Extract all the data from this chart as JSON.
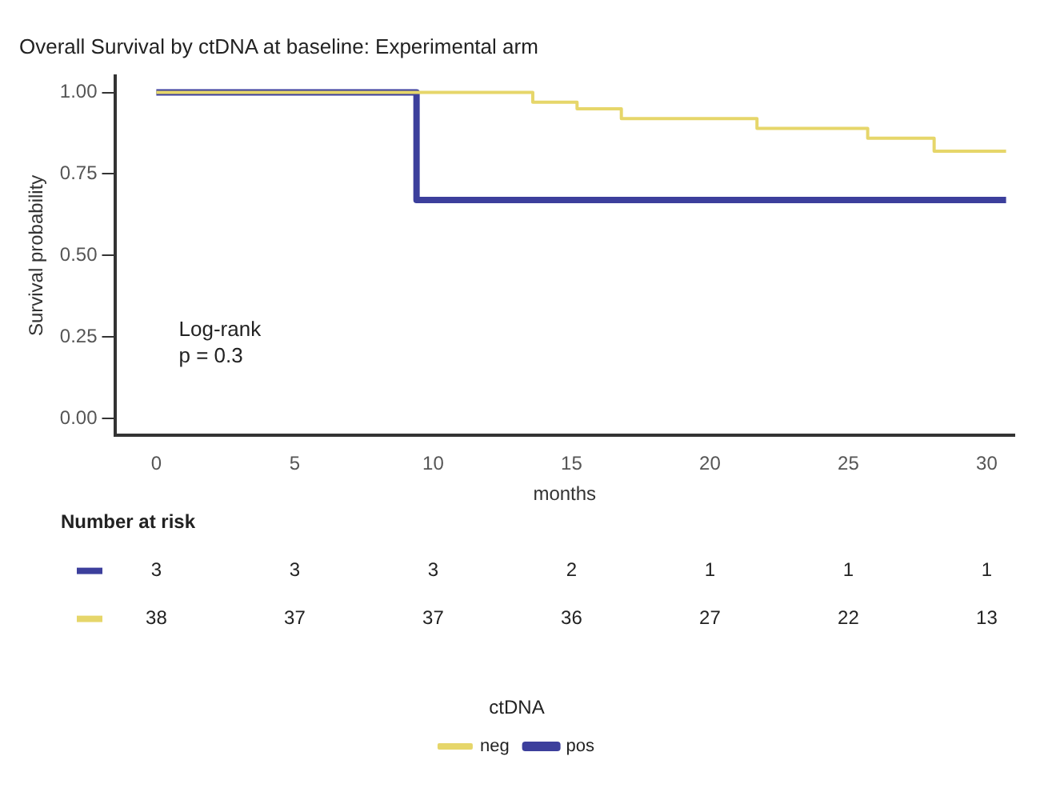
{
  "chart_data": {
    "type": "step",
    "title": "Overall Survival by ctDNA at baseline: Experimental arm",
    "xlabel": "months",
    "ylabel": "Survival probability",
    "legend_title": "ctDNA",
    "series": [
      {
        "name": "pos",
        "color": "#3c3f9c",
        "x": [
          0,
          9.4,
          30.7
        ],
        "values": [
          1,
          0.67,
          0.67
        ]
      },
      {
        "name": "neg",
        "color": "#e6d66a",
        "x": [
          0,
          13.6,
          15.2,
          16.8,
          21.7,
          25.7,
          28.1,
          30.7
        ],
        "values": [
          1,
          0.97,
          0.95,
          0.92,
          0.89,
          0.86,
          0.82,
          0.82
        ]
      }
    ],
    "xlim": [
      -1.5,
      31
    ],
    "xticks": [
      0,
      5,
      10,
      15,
      20,
      25,
      30
    ],
    "ylim": [
      -0.05,
      1.05
    ],
    "yticks": [
      {
        "value": 0,
        "label": "0.00"
      },
      {
        "value": 0.25,
        "label": "0.25"
      },
      {
        "value": 0.5,
        "label": "0.50"
      },
      {
        "value": 0.75,
        "label": "0.75"
      },
      {
        "value": 1,
        "label": "1.00"
      }
    ],
    "grid": false,
    "legend": "bottom",
    "marker": "none",
    "line_style": "solid",
    "annotations": [
      "Log-rank",
      "p = 0.3",
      "Number at risk",
      "3",
      "3",
      "3",
      "2",
      "1",
      "1",
      "1",
      "38",
      "37",
      "37",
      "36",
      "27",
      "22",
      "13"
    ]
  }
}
